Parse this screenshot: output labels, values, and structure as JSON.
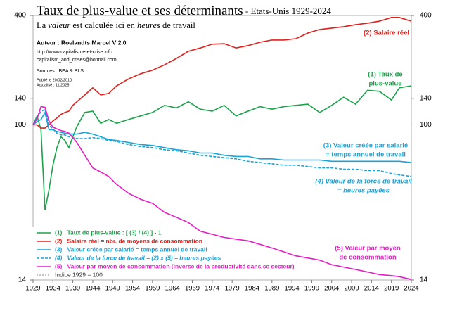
{
  "chart_data": {
    "type": "line",
    "title": "Taux de plus-value et ses déterminants",
    "title_suffix": " - Etats-Unis 1929-2024",
    "subtitle_parts": [
      "La ",
      "valeur",
      " est calculée ici en ",
      "heures",
      " de travail"
    ],
    "info": [
      "Auteur : Roelandts Marcel  V  2.0",
      "http://www.capitalisme-et-crise.info",
      "capitalism_and_crises@hotmail.com",
      "Sources : BEA & BLS",
      "Publié le 20/02/2010",
      "Actualisé : 11/2025"
    ],
    "log_scale": true,
    "xlim": [
      1929,
      2024
    ],
    "xticks": [
      1929,
      1934,
      1939,
      1944,
      1949,
      1954,
      1959,
      1964,
      1969,
      1974,
      1979,
      1984,
      1989,
      1994,
      1999,
      2004,
      2009,
      2014,
      2019,
      2024
    ],
    "ylim": [
      14,
      400
    ],
    "yticks": [
      14,
      100,
      140,
      400
    ],
    "reference": {
      "name": "Indice 1929 = 100",
      "value": 100,
      "color": "#888888"
    },
    "x": [
      1929,
      1930,
      1931,
      1932,
      1933,
      1934,
      1935,
      1936,
      1937,
      1938,
      1939,
      1940,
      1942,
      1944,
      1946,
      1948,
      1950,
      1953,
      1956,
      1959,
      1962,
      1965,
      1968,
      1971,
      1974,
      1977,
      1980,
      1983,
      1986,
      1989,
      1992,
      1995,
      1998,
      2001,
      2004,
      2007,
      2010,
      2013,
      2016,
      2019,
      2021,
      2024
    ],
    "series": [
      {
        "name": "(1)   Taux de plus-value : [ (3) / (4) ] - 1",
        "color": "#1aa34a",
        "dashed": false,
        "annotation": [
          "(1) Taux de",
          "plus-value"
        ],
        "values": [
          100,
          112,
          94,
          34,
          44,
          60,
          75,
          86,
          82,
          75,
          86,
          98,
          117,
          119,
          102,
          107,
          102,
          107,
          112,
          117,
          128,
          124,
          134,
          122,
          119,
          128,
          112,
          119,
          126,
          122,
          126,
          128,
          130,
          117,
          128,
          142,
          130,
          155,
          153,
          137,
          160,
          164
        ]
      },
      {
        "name": "(2)   Salaire réel = nbr. de moyens de consommation",
        "color": "#e0201b",
        "dashed": false,
        "annotation": [
          "(2) Salaire réel"
        ],
        "values": [
          100,
          100,
          96,
          96,
          100,
          105,
          109,
          114,
          117,
          119,
          128,
          134,
          146,
          160,
          146,
          149,
          164,
          179,
          191,
          200,
          214,
          232,
          254,
          265,
          278,
          280,
          265,
          273,
          285,
          293,
          293,
          298,
          320,
          335,
          341,
          347,
          356,
          363,
          372,
          390,
          390,
          372
        ]
      },
      {
        "name": "(3)   Valeur créée par salarié = temps annuel de travail",
        "color": "#1aa3d8",
        "dashed": false,
        "annotation": [
          "(3) Valeur créée par salarié",
          "=  temps annuel  de travail"
        ],
        "values": [
          100,
          104,
          107,
          117,
          94,
          94,
          92,
          91,
          90,
          89,
          89,
          89,
          91,
          89,
          86,
          83,
          82,
          80,
          78,
          77,
          75,
          73,
          72,
          70,
          70,
          68,
          67,
          67,
          65,
          65,
          64,
          64,
          64,
          64,
          63,
          63,
          63,
          63,
          63,
          63,
          63,
          62
        ]
      },
      {
        "name": "(4)   Valeur de la force de travail = (2) x (5) = heures payées",
        "color": "#1aa3d8",
        "dashed": true,
        "annotation": [
          "(4) Valeur de la force de travail",
          "= heures payées"
        ],
        "values": [
          100,
          110,
          118,
          122,
          100,
          95,
          90,
          88,
          88,
          86,
          85,
          84,
          84,
          85,
          84,
          82,
          81,
          78,
          76,
          75,
          73,
          72,
          70,
          68,
          67,
          66,
          65,
          63,
          62,
          61,
          60,
          60,
          59,
          58,
          58,
          57,
          57,
          56,
          56,
          54,
          53,
          52
        ]
      },
      {
        "name": "(5)   Valeur par moyen de consommation (inverse de la productivité dans ce secteur)",
        "color": "#e61ec8",
        "dashed": false,
        "annotation": [
          "(5) Valeur par moyen",
          "de consommation"
        ],
        "values": [
          100,
          108,
          126,
          125,
          105,
          97,
          95,
          93,
          92,
          90,
          85,
          80,
          68,
          58,
          55,
          52,
          47,
          42,
          39,
          37,
          33,
          31,
          29,
          26,
          25,
          24,
          23.5,
          23,
          22,
          21,
          20,
          19,
          18.5,
          18,
          17,
          16.5,
          16,
          15.5,
          15,
          14.8,
          14.6,
          14.1
        ]
      }
    ]
  }
}
